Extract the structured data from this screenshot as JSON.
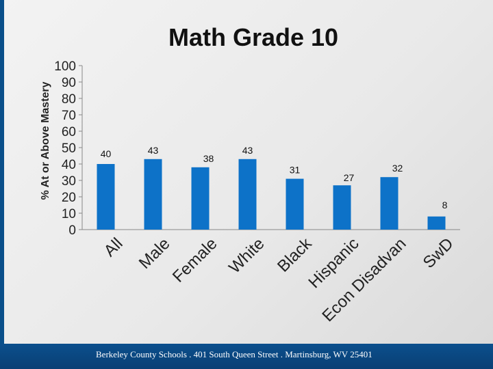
{
  "chart_data": {
    "type": "bar",
    "title": "Math Grade 10",
    "ylabel": "% At or Above Mastery",
    "xlabel": "",
    "categories": [
      "All",
      "Male",
      "Female",
      "White",
      "Black",
      "Hispanic",
      "Econ Disadvan",
      "SwD"
    ],
    "values": [
      40,
      43,
      38,
      43,
      31,
      27,
      32,
      8
    ],
    "ylim": [
      0,
      100
    ],
    "yticks": [
      "100",
      "90",
      "80",
      "70",
      "60",
      "50",
      "40",
      "30",
      "20",
      "10",
      "0"
    ],
    "grid": false,
    "legend": "none",
    "bar_color": "#0d72c8"
  },
  "footer": {
    "text": "Berkeley County Schools . 401 South Queen Street . Martinsburg, WV 25401"
  }
}
